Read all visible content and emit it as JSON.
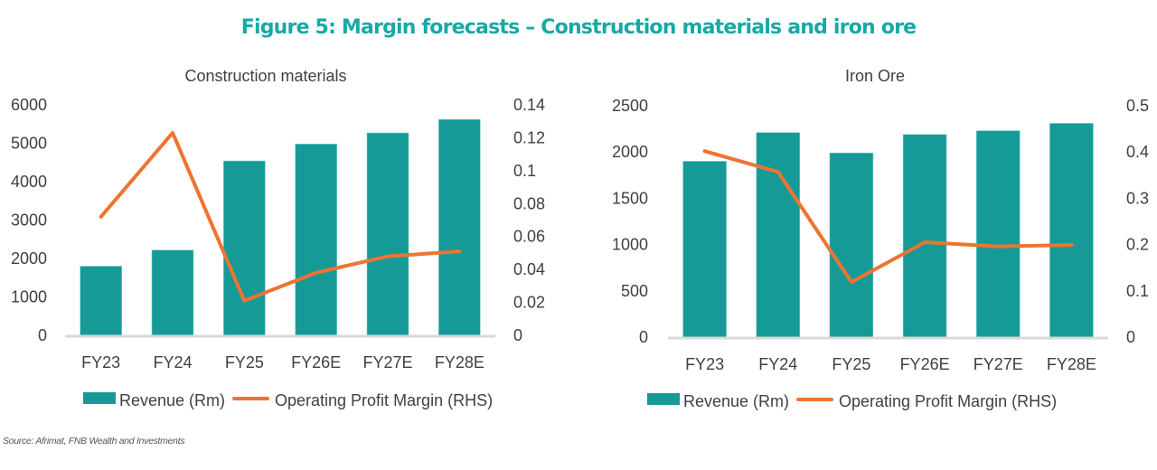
{
  "figure": {
    "title": "Figure 5: Margin forecasts – Construction materials and iron ore",
    "source": "Source: Afrimat, FNB Wealth and Investments"
  },
  "colors": {
    "bar": "#159a98",
    "line": "#ed7431",
    "title": "#17a9a6",
    "axis": "#d9d9d9",
    "text": "#404040"
  },
  "chart_data": [
    {
      "type": "bar",
      "title": "Construction materials",
      "categories": [
        "FY23",
        "FY24",
        "FY25",
        "FY26E",
        "FY27E",
        "FY28E"
      ],
      "series": [
        {
          "name": "Revenue (Rm)",
          "type": "bar",
          "axis": "left",
          "values": [
            1800,
            2220,
            4540,
            4980,
            5270,
            5620
          ]
        },
        {
          "name": "Operating Profit Margin (RHS)",
          "type": "line",
          "axis": "right",
          "values": [
            0.072,
            0.123,
            0.021,
            0.038,
            0.048,
            0.051
          ]
        }
      ],
      "ylim_left": [
        0,
        6000
      ],
      "yticks_left": [
        "0",
        "1000",
        "2000",
        "3000",
        "4000",
        "5000",
        "6000"
      ],
      "ylim_right": [
        0,
        0.14
      ],
      "yticks_right": [
        "0",
        "0.02",
        "0.04",
        "0.06",
        "0.08",
        "0.1",
        "0.12",
        "0.14"
      ],
      "xlabel": "",
      "ylabel": "",
      "grid": false,
      "legend": "bottom"
    },
    {
      "type": "bar",
      "title": "Iron Ore",
      "categories": [
        "FY23",
        "FY24",
        "FY25",
        "FY26E",
        "FY27E",
        "FY28E"
      ],
      "series": [
        {
          "name": "Revenue (Rm)",
          "type": "bar",
          "axis": "left",
          "values": [
            1900,
            2210,
            1990,
            2190,
            2230,
            2310
          ]
        },
        {
          "name": "Operating Profit Margin (RHS)",
          "type": "line",
          "axis": "right",
          "values": [
            0.402,
            0.357,
            0.119,
            0.205,
            0.196,
            0.199
          ]
        }
      ],
      "ylim_left": [
        0,
        2500
      ],
      "yticks_left": [
        "0",
        "500",
        "1000",
        "1500",
        "2000",
        "2500"
      ],
      "ylim_right": [
        0,
        0.5
      ],
      "yticks_right": [
        "0",
        "0.1",
        "0.2",
        "0.3",
        "0.4",
        "0.5"
      ],
      "xlabel": "",
      "ylabel": "",
      "grid": false,
      "legend": "bottom"
    }
  ]
}
